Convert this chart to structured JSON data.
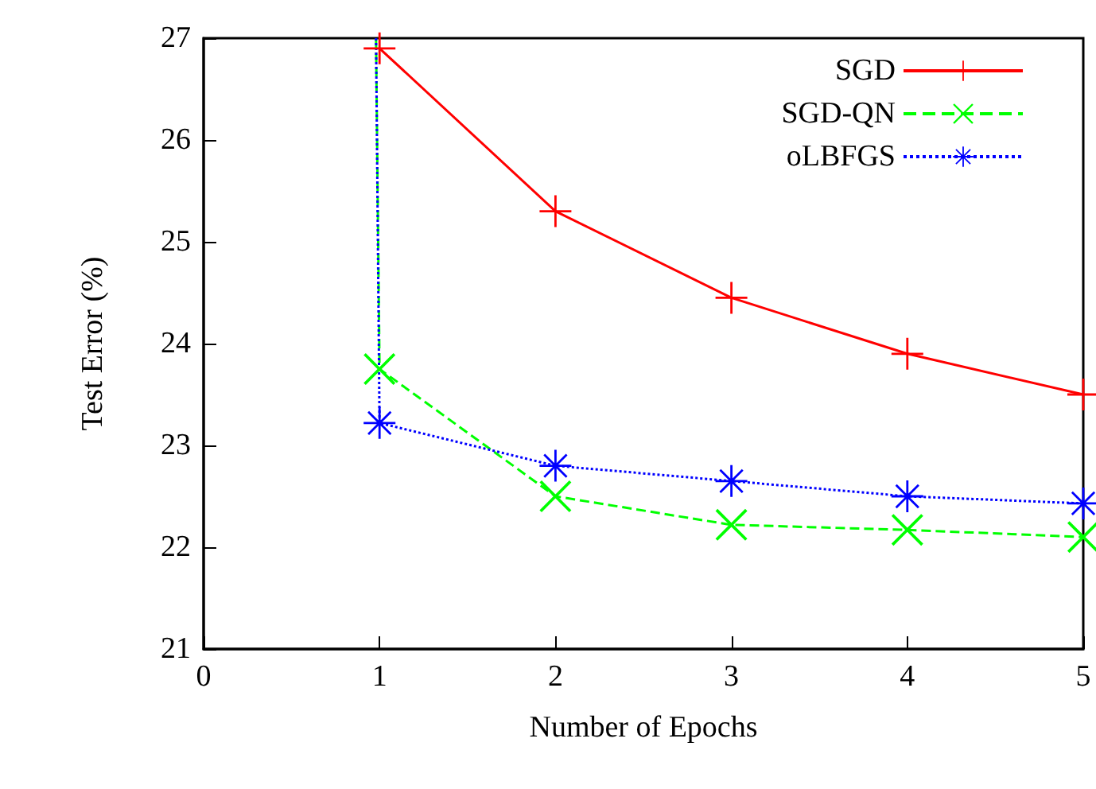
{
  "chart_data": {
    "type": "line",
    "xlabel": "Number of Epochs",
    "ylabel": "Test Error (%)",
    "xlim": [
      0,
      5
    ],
    "xticks": [
      0,
      1,
      2,
      3,
      4,
      5
    ],
    "ylim": [
      21,
      27
    ],
    "yticks": [
      21,
      22,
      23,
      24,
      25,
      26,
      27
    ],
    "grid": false,
    "legend": "top right",
    "series": [
      {
        "name": "SGD",
        "color": "#ff0000",
        "marker": "plus",
        "line_style": "solid",
        "x": [
          1,
          2,
          3,
          4,
          5
        ],
        "values": [
          26.9,
          25.3,
          24.45,
          23.9,
          23.5
        ]
      },
      {
        "name": "SGD-QN",
        "color": "#00ff00",
        "marker": "cross",
        "line_style": "dashed",
        "x": [
          0.98,
          1,
          2,
          3,
          4,
          5
        ],
        "values": [
          27,
          23.75,
          22.5,
          22.22,
          22.17,
          22.1
        ]
      },
      {
        "name": "oLBFGS",
        "color": "#0000ff",
        "marker": "star",
        "line_style": "dotted",
        "x": [
          0.98,
          1,
          2,
          3,
          4,
          5
        ],
        "values": [
          27,
          23.22,
          22.8,
          22.65,
          22.5,
          22.43
        ]
      }
    ]
  }
}
